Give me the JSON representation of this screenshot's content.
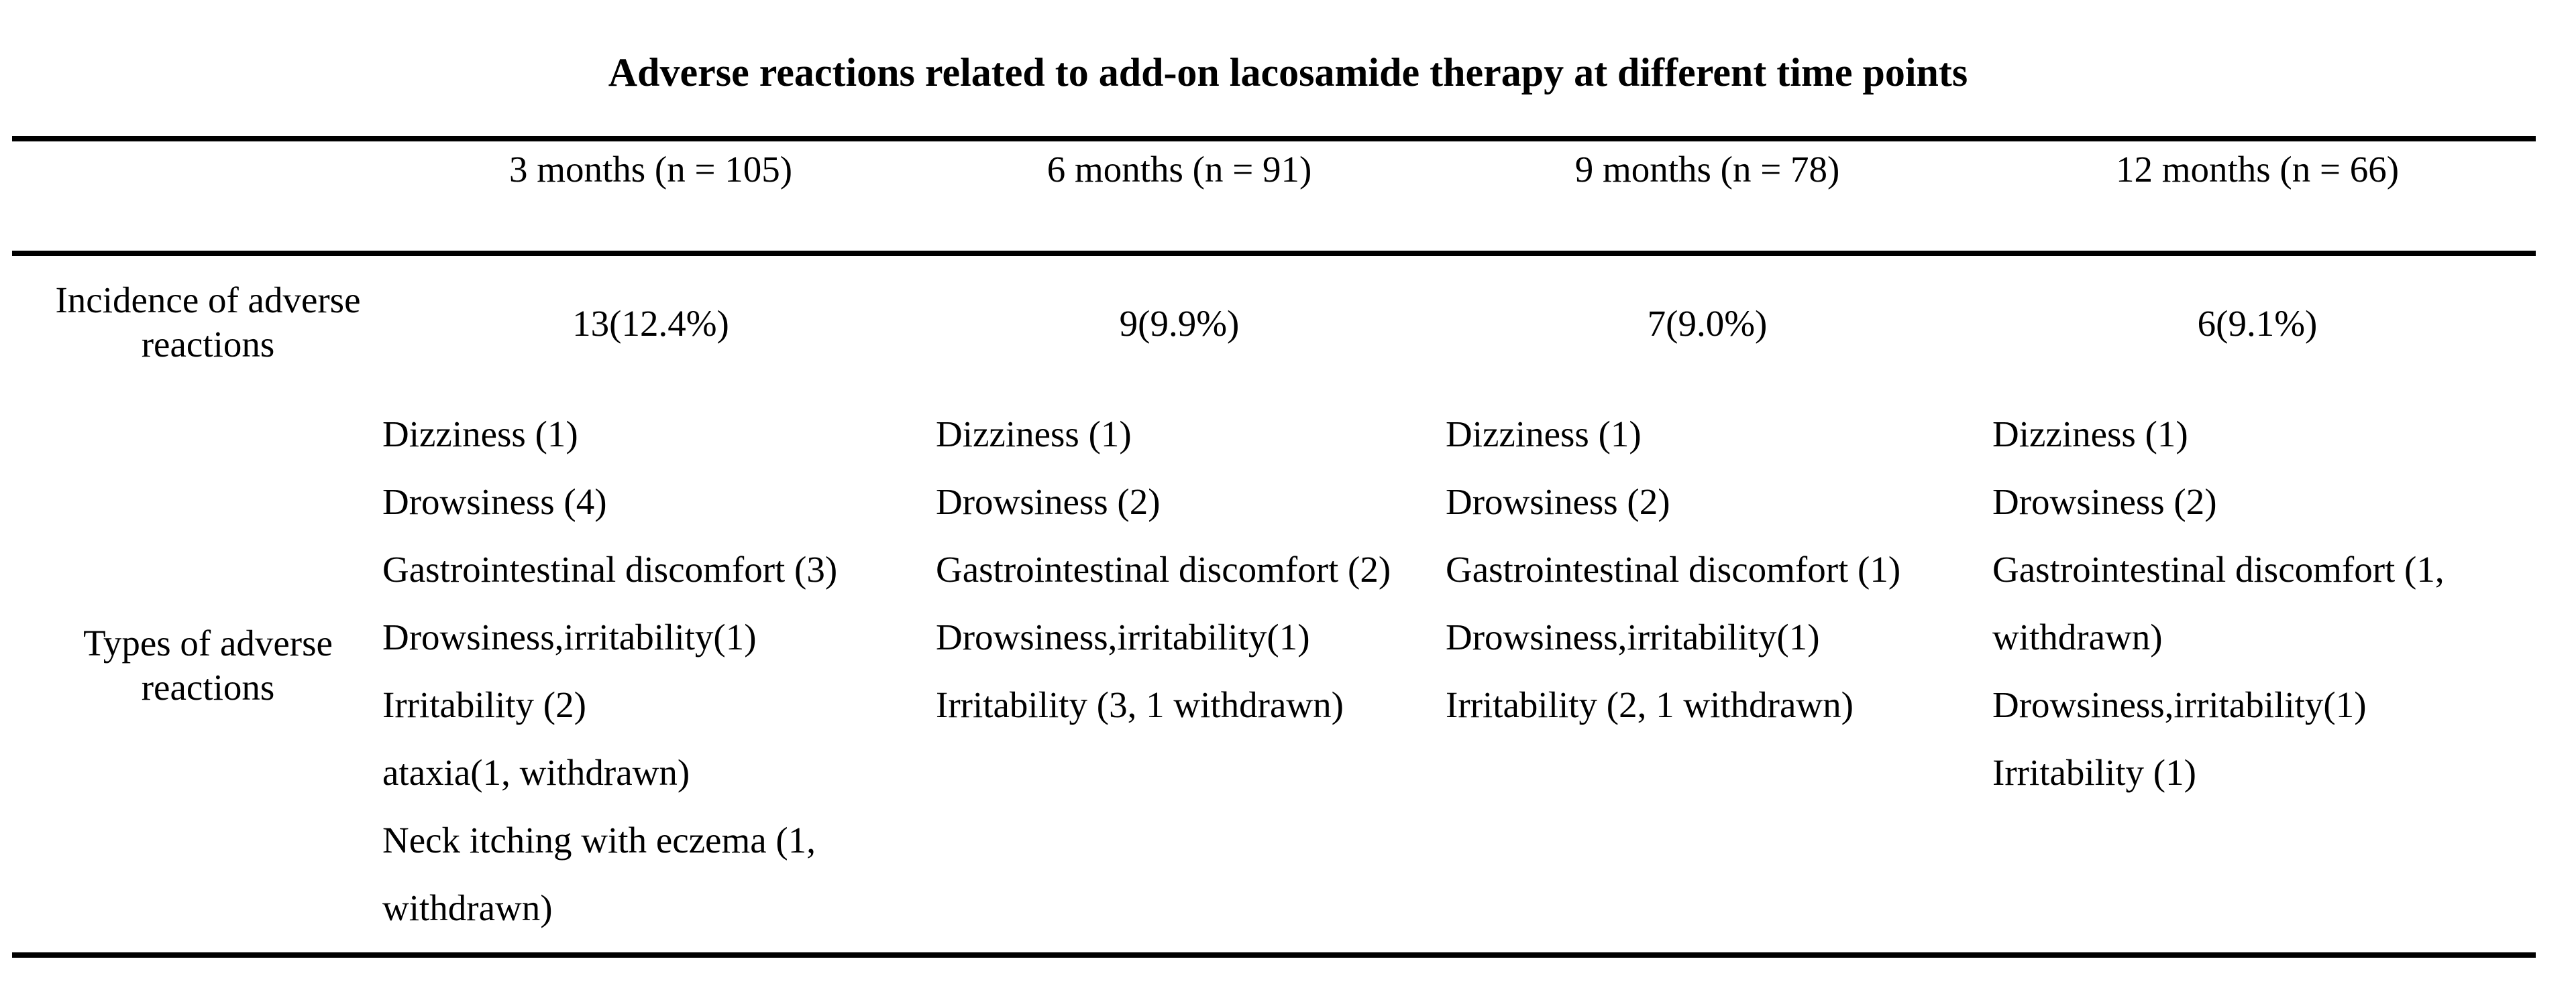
{
  "title": "Adverse reactions related to add-on lacosamide therapy at different time points",
  "row_labels": {
    "incidence": "Incidence of adverse\nreactions",
    "types": "Types of adverse\nreactions"
  },
  "columns": [
    {
      "header": "3 months (n = 105)",
      "incidence": "13(12.4%)",
      "types": [
        "Dizziness (1)",
        "Drowsiness (4)",
        "Gastrointestinal discomfort (3)",
        "Drowsiness,irritability(1)",
        "Irritability (2)",
        "ataxia(1, withdrawn)",
        "Neck itching with eczema (1,\nwithdrawn)"
      ]
    },
    {
      "header": "6 months (n = 91)",
      "incidence": "9(9.9%)",
      "types": [
        "Dizziness (1)",
        "Drowsiness (2)",
        "Gastrointestinal discomfort (2)",
        "Drowsiness,irritability(1)",
        "Irritability (3, 1 withdrawn)"
      ]
    },
    {
      "header": "9 months (n = 78)",
      "incidence": "7(9.0%)",
      "types": [
        "Dizziness (1)",
        "Drowsiness (2)",
        "Gastrointestinal discomfort (1)",
        "Drowsiness,irritability(1)",
        "Irritability (2, 1 withdrawn)"
      ]
    },
    {
      "header": "12 months (n = 66)",
      "incidence": "6(9.1%)",
      "types": [
        "Dizziness (1)",
        "Drowsiness (2)",
        "Gastrointestinal discomfort (1,\nwithdrawn)",
        "Drowsiness,irritability(1)",
        "Irritability (1)"
      ]
    }
  ],
  "colors": {
    "background": "#ffffff",
    "text": "#000000",
    "rule": "#000000"
  }
}
